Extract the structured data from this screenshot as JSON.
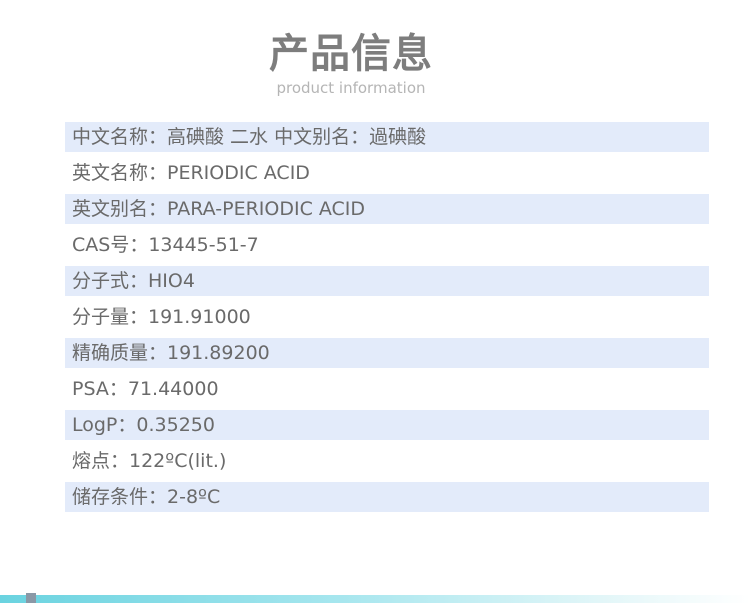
{
  "header": {
    "title": "产品信息",
    "subtitle": "product information"
  },
  "info_rows": [
    "中文名称：高碘酸 二水 中文别名：過碘酸",
    "英文名称：PERIODIC ACID",
    "英文别名：PARA-PERIODIC ACID",
    "CAS号：13445-51-7",
    "分子式：HIO4",
    "分子量：191.91000",
    "精确质量：191.89200",
    "PSA：71.44000",
    "LogP：0.35250",
    "熔点：122ºC(lit.)",
    "储存条件：2-8ºC"
  ],
  "colors": {
    "row_shade": "#e3ebfa",
    "text": "#6a6a6a",
    "title": "#7d7d7d",
    "accent_bar": "#6ad3e0"
  }
}
